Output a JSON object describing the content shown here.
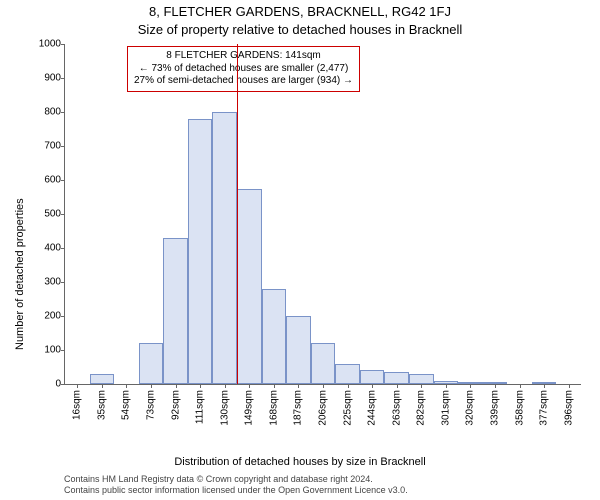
{
  "titles": {
    "address": "8, FLETCHER GARDENS, BRACKNELL, RG42 1FJ",
    "subtitle": "Size of property relative to detached houses in Bracknell"
  },
  "axes": {
    "ylabel": "Number of detached properties",
    "xlabel": "Distribution of detached houses by size in Bracknell"
  },
  "attribution": {
    "line1": "Contains HM Land Registry data © Crown copyright and database right 2024.",
    "line2": "Contains public sector information licensed under the Open Government Licence v3.0."
  },
  "chart": {
    "type": "histogram",
    "background_color": "#ffffff",
    "bar_fill": "#dbe3f3",
    "bar_border": "#7a93c8",
    "marker_color": "#cc0000",
    "ylim": [
      0,
      1000
    ],
    "ytick_step": 100,
    "xticks": [
      "16sqm",
      "35sqm",
      "54sqm",
      "73sqm",
      "92sqm",
      "111sqm",
      "130sqm",
      "149sqm",
      "168sqm",
      "187sqm",
      "206sqm",
      "225sqm",
      "244sqm",
      "263sqm",
      "282sqm",
      "301sqm",
      "320sqm",
      "339sqm",
      "358sqm",
      "377sqm",
      "396sqm"
    ],
    "values": [
      0,
      30,
      0,
      120,
      430,
      780,
      800,
      575,
      280,
      200,
      120,
      60,
      40,
      35,
      30,
      10,
      5,
      5,
      0,
      5,
      0
    ],
    "marker_bin_index": 7,
    "label_fontsize": 11,
    "tick_fontsize": 10,
    "title_fontsize": 13
  },
  "annotation": {
    "line1": "8 FLETCHER GARDENS: 141sqm",
    "line2": "← 73% of detached houses are smaller (2,477)",
    "line3": "27% of semi-detached houses are larger (934) →"
  }
}
